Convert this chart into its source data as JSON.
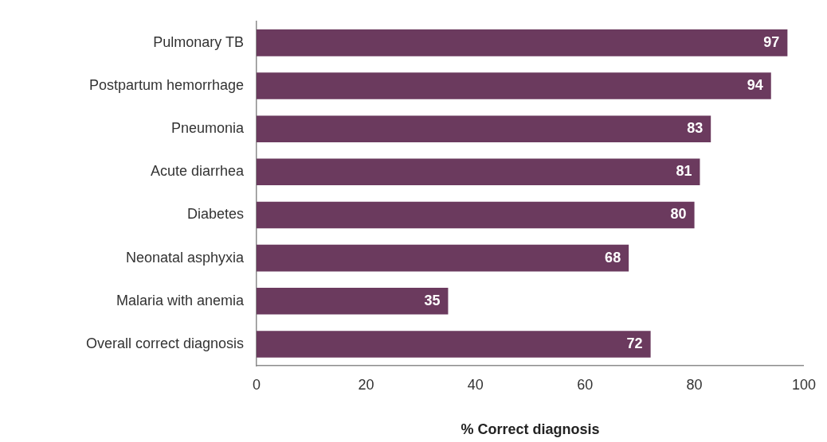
{
  "chart_data": {
    "type": "bar",
    "orientation": "horizontal",
    "xlabel": "% Correct diagnosis",
    "categories": [
      "Pulmonary TB",
      "Postpartum hemorrhage",
      "Pneumonia",
      "Acute diarrhea",
      "Diabetes",
      "Neonatal asphyxia",
      "Malaria with anemia",
      "Overall correct diagnosis"
    ],
    "values": [
      97,
      94,
      83,
      81,
      80,
      68,
      35,
      72
    ],
    "color": "#6b3a5e",
    "xlim": [
      0,
      100
    ],
    "xticks": [
      0,
      20,
      40,
      60,
      80,
      100
    ],
    "grid": false,
    "legend": false,
    "data_labels": true
  }
}
